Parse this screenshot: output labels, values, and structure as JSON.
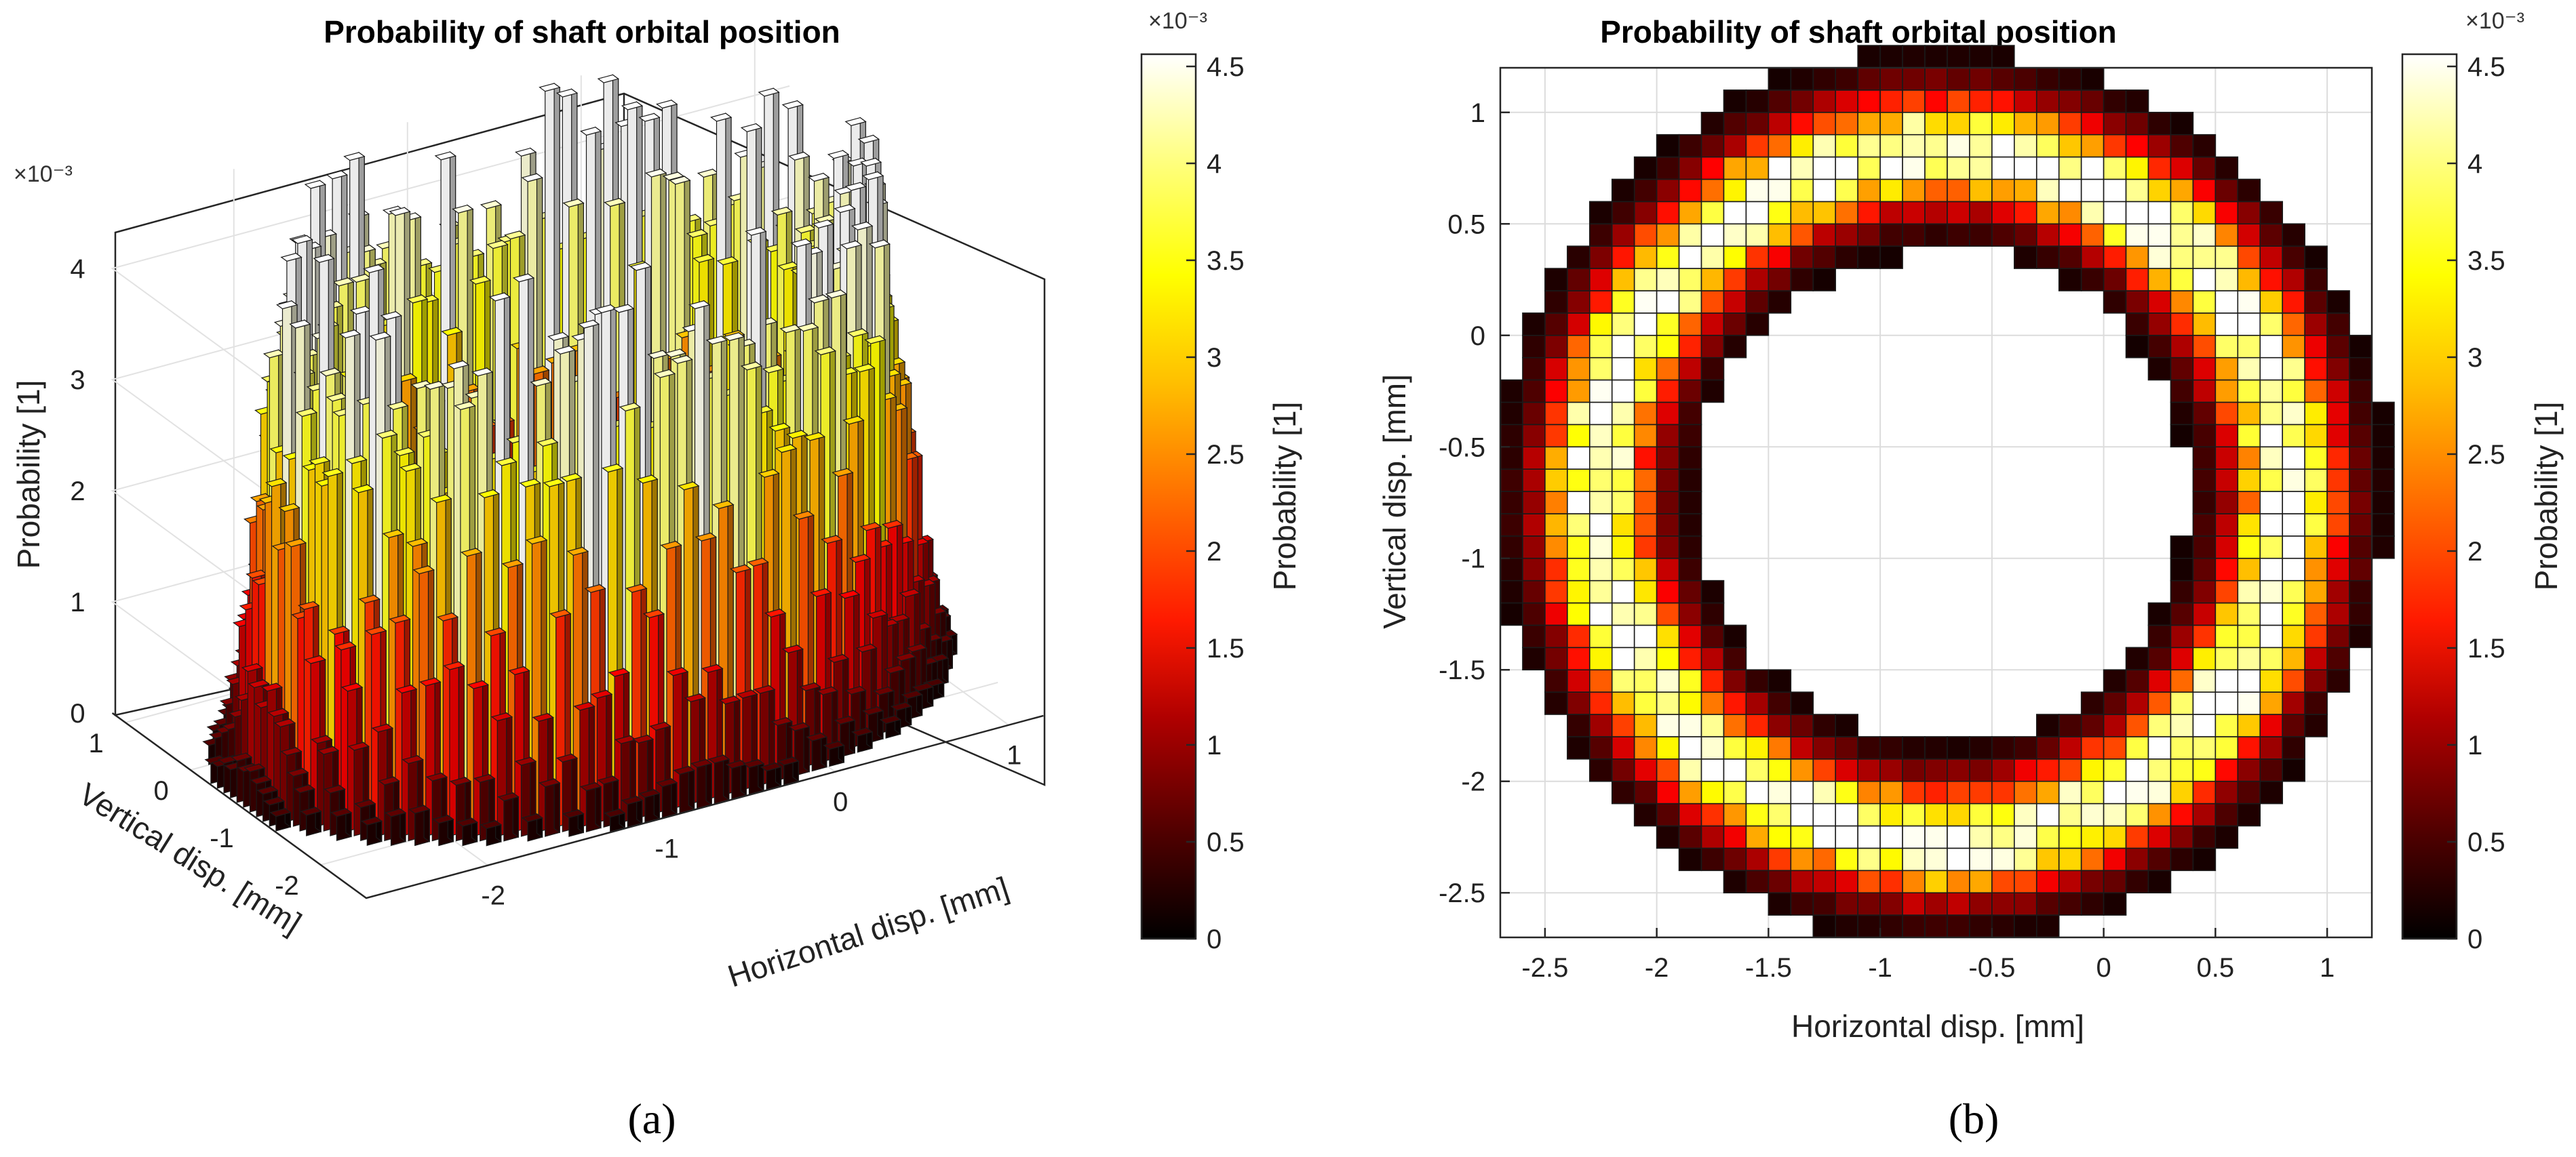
{
  "chart_data": [
    {
      "panel": "(a)",
      "type": "bar3d",
      "title": "Probability of shaft orbital position",
      "xlabel": "Horizontal disp. [mm]",
      "ylabel": "Vertical disp. [mm]",
      "zlabel": "Probability [1]",
      "z_exponent": "×10⁻³",
      "x_ticks": [
        "-2",
        "-1",
        "0",
        "1"
      ],
      "y_ticks": [
        "1",
        "0",
        "-1",
        "-2"
      ],
      "z_ticks": [
        "0",
        "1",
        "2",
        "3",
        "4"
      ],
      "xlim": [
        -2.7,
        1.2
      ],
      "ylim": [
        -2.7,
        1.2
      ],
      "zlim": [
        0,
        4.6
      ],
      "ring": {
        "center_x": -0.72,
        "center_y": -0.72,
        "mean_radius": 1.55,
        "peak_value": 4.3,
        "width": 0.17,
        "bin_size": 0.1
      },
      "colorbar": {
        "label": "Probability [1]",
        "exponent": "×10⁻³",
        "min": 0,
        "max": 4.5,
        "ticks": [
          "0",
          "0.5",
          "1",
          "1.5",
          "2",
          "2.5",
          "3",
          "3.5",
          "4",
          "4.5"
        ],
        "colormap": "hot"
      }
    },
    {
      "panel": "(b)",
      "type": "heatmap",
      "title": "Probability of shaft orbital position",
      "xlabel": "Horizontal disp. [mm]",
      "ylabel": "Vertical disp. [mm]",
      "x_ticks": [
        "-2.5",
        "-2",
        "-1.5",
        "-1",
        "-0.5",
        "0",
        "0.5",
        "1"
      ],
      "y_ticks": [
        "1",
        "0.5",
        "0",
        "-0.5",
        "-1",
        "-1.5",
        "-2",
        "-2.5"
      ],
      "xlim": [
        -2.7,
        1.2
      ],
      "ylim": [
        -2.7,
        1.2
      ],
      "grid": true,
      "ring": {
        "center_x": -0.72,
        "center_y": -0.72,
        "mean_radius": 1.55,
        "peak_value": 4.3,
        "width": 0.17,
        "bin_size": 0.1
      },
      "colorbar": {
        "label": "Probability [1]",
        "exponent": "×10⁻³",
        "min": 0,
        "max": 4.5,
        "ticks": [
          "0",
          "0.5",
          "1",
          "1.5",
          "2",
          "2.5",
          "3",
          "3.5",
          "4",
          "4.5"
        ],
        "colormap": "hot"
      }
    }
  ]
}
